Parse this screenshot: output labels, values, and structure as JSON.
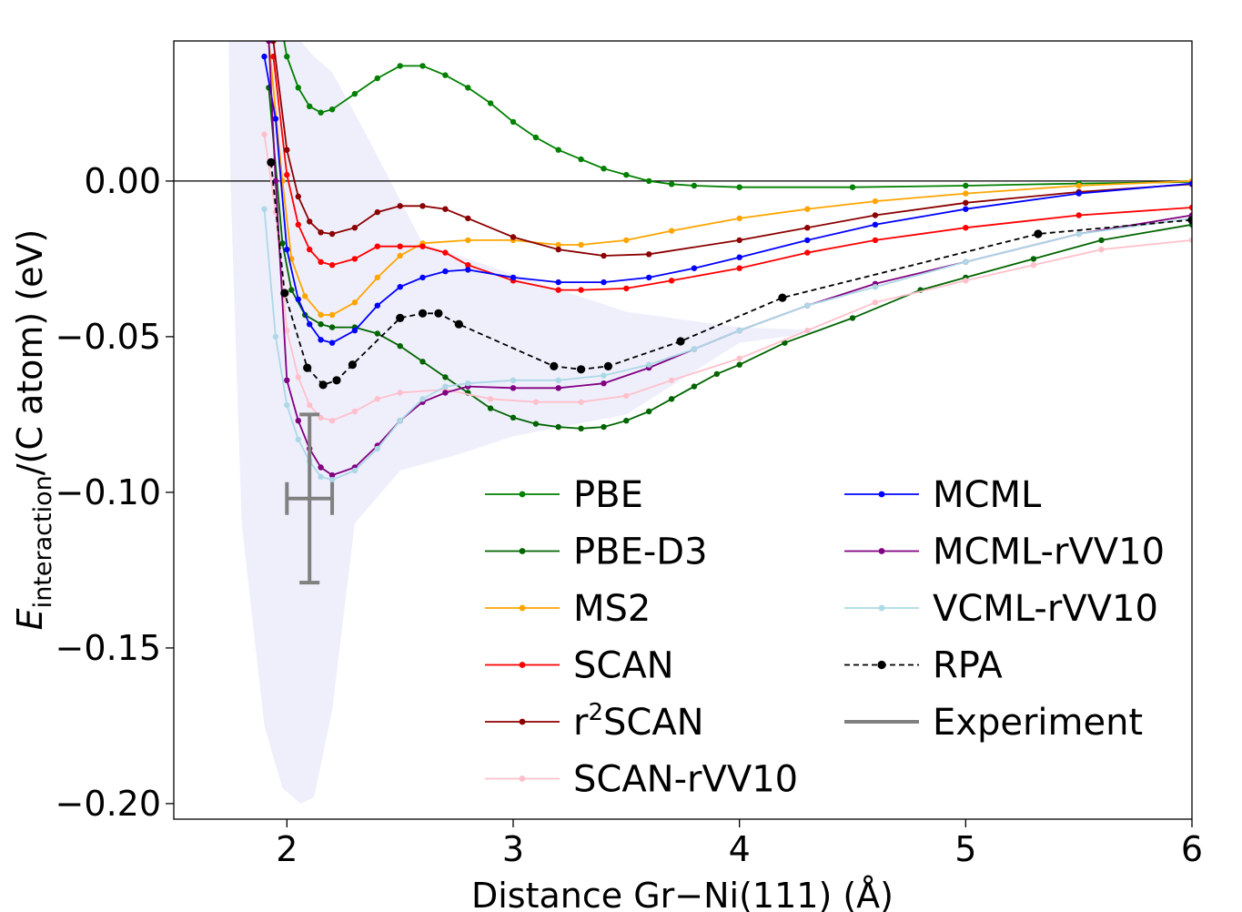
{
  "chart_data": {
    "type": "line",
    "xlabel": "Distance Gr−Ni(111) (Å)",
    "ylabel_main": "E",
    "ylabel_sub": "interaction",
    "ylabel_rest": "/(C atom) (eV)",
    "xlim": [
      1.5,
      6.0
    ],
    "ylim": [
      -0.205,
      0.045
    ],
    "xticks": [
      2,
      3,
      4,
      5,
      6
    ],
    "xtick_labels": [
      "2",
      "3",
      "4",
      "5",
      "6"
    ],
    "yticks": [
      0.0,
      -0.05,
      -0.1,
      -0.15,
      -0.2
    ],
    "ytick_labels": [
      "0.00",
      "−0.05",
      "−0.10",
      "−0.15",
      "−0.20"
    ],
    "zero_line": true,
    "grid": false,
    "legend_position": "lower-right",
    "legend_entries": [
      {
        "label": "PBE",
        "color": "#008000",
        "style": "solid-marker"
      },
      {
        "label": "PBE-D3",
        "color": "#006400",
        "style": "solid-marker"
      },
      {
        "label": "MS2",
        "color": "#FFA500",
        "style": "solid-marker"
      },
      {
        "label": "SCAN",
        "color": "#FF0000",
        "style": "solid-marker"
      },
      {
        "label_base": "r",
        "label_sup": "2",
        "label_rest": "SCAN",
        "color": "#8B0000",
        "style": "solid-marker"
      },
      {
        "label": "SCAN-rVV10",
        "color": "#FFC0CB",
        "style": "solid-marker"
      },
      {
        "label": "MCML",
        "color": "#0000FF",
        "style": "solid-marker"
      },
      {
        "label": "MCML-rVV10",
        "color": "#800080",
        "style": "solid-marker"
      },
      {
        "label": "VCML-rVV10",
        "color": "#ADD8E6",
        "style": "solid-marker"
      },
      {
        "label": "RPA",
        "color": "#000000",
        "style": "dashed-marker"
      },
      {
        "label": "Experiment",
        "color": "#808080",
        "style": "thick-line"
      }
    ],
    "uncertainty_band": {
      "name": "ensemble-band",
      "color": "#E6E6FA",
      "upper": [
        [
          1.78,
          0.06
        ],
        [
          1.88,
          0.06
        ],
        [
          2.0,
          0.05
        ],
        [
          2.12,
          0.04
        ],
        [
          2.2,
          0.035
        ],
        [
          2.35,
          0.015
        ],
        [
          2.6,
          -0.02
        ],
        [
          3.0,
          -0.03
        ],
        [
          3.5,
          -0.042
        ],
        [
          4.0,
          -0.047
        ],
        [
          4.4,
          -0.048
        ]
      ],
      "lower": [
        [
          4.4,
          -0.048
        ],
        [
          4.0,
          -0.052
        ],
        [
          3.5,
          -0.075
        ],
        [
          3.0,
          -0.082
        ],
        [
          2.75,
          -0.088
        ],
        [
          2.5,
          -0.093
        ],
        [
          2.3,
          -0.11
        ],
        [
          2.2,
          -0.17
        ],
        [
          2.12,
          -0.198
        ],
        [
          2.06,
          -0.2
        ],
        [
          1.98,
          -0.195
        ],
        [
          1.9,
          -0.175
        ],
        [
          1.8,
          -0.11
        ],
        [
          1.75,
          0.0
        ],
        [
          1.74,
          0.06
        ]
      ]
    },
    "series": [
      {
        "name": "PBE",
        "color": "#008000",
        "dashed": false,
        "marker_r": 3.2,
        "points": [
          [
            1.98,
            0.048
          ],
          [
            2.0,
            0.04
          ],
          [
            2.05,
            0.03
          ],
          [
            2.1,
            0.024
          ],
          [
            2.15,
            0.022
          ],
          [
            2.2,
            0.023
          ],
          [
            2.3,
            0.028
          ],
          [
            2.4,
            0.033
          ],
          [
            2.5,
            0.037
          ],
          [
            2.6,
            0.037
          ],
          [
            2.7,
            0.034
          ],
          [
            2.8,
            0.03
          ],
          [
            2.9,
            0.025
          ],
          [
            3.0,
            0.019
          ],
          [
            3.1,
            0.014
          ],
          [
            3.2,
            0.01
          ],
          [
            3.3,
            0.007
          ],
          [
            3.4,
            0.004
          ],
          [
            3.5,
            0.002
          ],
          [
            3.6,
            0.0
          ],
          [
            3.7,
            -0.001
          ],
          [
            3.8,
            -0.0015
          ],
          [
            4.0,
            -0.002
          ],
          [
            4.5,
            -0.002
          ],
          [
            5.0,
            -0.0015
          ],
          [
            5.5,
            -0.0008
          ],
          [
            6.0,
            -0.0003
          ]
        ]
      },
      {
        "name": "PBE-D3",
        "color": "#006400",
        "dashed": false,
        "marker_r": 3.2,
        "points": [
          [
            1.92,
            0.03
          ],
          [
            1.98,
            -0.02
          ],
          [
            2.02,
            -0.035
          ],
          [
            2.08,
            -0.043
          ],
          [
            2.15,
            -0.046
          ],
          [
            2.2,
            -0.047
          ],
          [
            2.3,
            -0.047
          ],
          [
            2.4,
            -0.049
          ],
          [
            2.5,
            -0.053
          ],
          [
            2.6,
            -0.058
          ],
          [
            2.7,
            -0.063
          ],
          [
            2.8,
            -0.068
          ],
          [
            2.9,
            -0.073
          ],
          [
            3.0,
            -0.076
          ],
          [
            3.1,
            -0.078
          ],
          [
            3.2,
            -0.079
          ],
          [
            3.3,
            -0.0795
          ],
          [
            3.4,
            -0.079
          ],
          [
            3.5,
            -0.077
          ],
          [
            3.6,
            -0.074
          ],
          [
            3.7,
            -0.07
          ],
          [
            3.8,
            -0.066
          ],
          [
            3.9,
            -0.062
          ],
          [
            4.0,
            -0.059
          ],
          [
            4.2,
            -0.052
          ],
          [
            4.5,
            -0.044
          ],
          [
            4.8,
            -0.035
          ],
          [
            5.0,
            -0.031
          ],
          [
            5.3,
            -0.025
          ],
          [
            5.6,
            -0.019
          ],
          [
            6.0,
            -0.014
          ]
        ]
      },
      {
        "name": "MS2",
        "color": "#FFA500",
        "dashed": false,
        "marker_r": 3.2,
        "points": [
          [
            1.92,
            0.045
          ],
          [
            1.98,
            0.0
          ],
          [
            2.02,
            -0.025
          ],
          [
            2.08,
            -0.037
          ],
          [
            2.15,
            -0.043
          ],
          [
            2.2,
            -0.043
          ],
          [
            2.3,
            -0.039
          ],
          [
            2.4,
            -0.031
          ],
          [
            2.5,
            -0.024
          ],
          [
            2.6,
            -0.02
          ],
          [
            2.8,
            -0.019
          ],
          [
            3.0,
            -0.019
          ],
          [
            3.2,
            -0.0205
          ],
          [
            3.3,
            -0.0205
          ],
          [
            3.5,
            -0.019
          ],
          [
            3.7,
            -0.016
          ],
          [
            4.0,
            -0.012
          ],
          [
            4.3,
            -0.009
          ],
          [
            4.6,
            -0.0065
          ],
          [
            5.0,
            -0.004
          ],
          [
            5.5,
            -0.0015
          ],
          [
            6.0,
            0.0
          ]
        ]
      },
      {
        "name": "SCAN",
        "color": "#FF0000",
        "dashed": false,
        "marker_r": 3.2,
        "points": [
          [
            1.94,
            0.04
          ],
          [
            2.0,
            0.002
          ],
          [
            2.05,
            -0.014
          ],
          [
            2.1,
            -0.022
          ],
          [
            2.15,
            -0.026
          ],
          [
            2.2,
            -0.027
          ],
          [
            2.3,
            -0.025
          ],
          [
            2.4,
            -0.021
          ],
          [
            2.5,
            -0.021
          ],
          [
            2.6,
            -0.021
          ],
          [
            2.7,
            -0.023
          ],
          [
            2.8,
            -0.027
          ],
          [
            3.0,
            -0.032
          ],
          [
            3.2,
            -0.035
          ],
          [
            3.3,
            -0.035
          ],
          [
            3.5,
            -0.0345
          ],
          [
            3.7,
            -0.032
          ],
          [
            4.0,
            -0.028
          ],
          [
            4.3,
            -0.023
          ],
          [
            4.6,
            -0.019
          ],
          [
            5.0,
            -0.015
          ],
          [
            5.5,
            -0.011
          ],
          [
            6.0,
            -0.0085
          ]
        ]
      },
      {
        "name": "r2SCAN",
        "color": "#8B0000",
        "dashed": false,
        "marker_r": 3.2,
        "points": [
          [
            1.94,
            0.045
          ],
          [
            2.0,
            0.01
          ],
          [
            2.05,
            -0.005
          ],
          [
            2.1,
            -0.013
          ],
          [
            2.15,
            -0.0165
          ],
          [
            2.2,
            -0.017
          ],
          [
            2.3,
            -0.015
          ],
          [
            2.4,
            -0.01
          ],
          [
            2.5,
            -0.008
          ],
          [
            2.6,
            -0.008
          ],
          [
            2.7,
            -0.009
          ],
          [
            2.8,
            -0.012
          ],
          [
            3.0,
            -0.018
          ],
          [
            3.2,
            -0.022
          ],
          [
            3.4,
            -0.024
          ],
          [
            3.6,
            -0.0235
          ],
          [
            4.0,
            -0.019
          ],
          [
            4.3,
            -0.015
          ],
          [
            4.6,
            -0.011
          ],
          [
            5.0,
            -0.007
          ],
          [
            5.5,
            -0.0035
          ],
          [
            6.0,
            -0.001
          ]
        ]
      },
      {
        "name": "SCAN-rVV10",
        "color": "#FFC0CB",
        "dashed": false,
        "marker_r": 3.2,
        "points": [
          [
            1.9,
            0.015
          ],
          [
            1.95,
            -0.01
          ],
          [
            2.0,
            -0.048
          ],
          [
            2.05,
            -0.063
          ],
          [
            2.1,
            -0.072
          ],
          [
            2.15,
            -0.076
          ],
          [
            2.2,
            -0.077
          ],
          [
            2.3,
            -0.074
          ],
          [
            2.4,
            -0.07
          ],
          [
            2.5,
            -0.068
          ],
          [
            2.7,
            -0.067
          ],
          [
            2.9,
            -0.07
          ],
          [
            3.1,
            -0.071
          ],
          [
            3.3,
            -0.071
          ],
          [
            3.5,
            -0.069
          ],
          [
            3.7,
            -0.064
          ],
          [
            4.0,
            -0.057
          ],
          [
            4.3,
            -0.048
          ],
          [
            4.6,
            -0.039
          ],
          [
            5.0,
            -0.032
          ],
          [
            5.3,
            -0.027
          ],
          [
            5.6,
            -0.022
          ],
          [
            6.0,
            -0.019
          ]
        ]
      },
      {
        "name": "MCML",
        "color": "#0000FF",
        "dashed": false,
        "marker_r": 3.2,
        "points": [
          [
            1.9,
            0.04
          ],
          [
            1.95,
            0.02
          ],
          [
            2.0,
            -0.022
          ],
          [
            2.05,
            -0.038
          ],
          [
            2.1,
            -0.046
          ],
          [
            2.15,
            -0.051
          ],
          [
            2.2,
            -0.052
          ],
          [
            2.3,
            -0.048
          ],
          [
            2.4,
            -0.04
          ],
          [
            2.5,
            -0.034
          ],
          [
            2.6,
            -0.031
          ],
          [
            2.7,
            -0.029
          ],
          [
            2.8,
            -0.0285
          ],
          [
            3.0,
            -0.031
          ],
          [
            3.2,
            -0.0325
          ],
          [
            3.4,
            -0.0325
          ],
          [
            3.6,
            -0.031
          ],
          [
            3.8,
            -0.028
          ],
          [
            4.0,
            -0.0245
          ],
          [
            4.3,
            -0.019
          ],
          [
            4.6,
            -0.014
          ],
          [
            5.0,
            -0.009
          ],
          [
            5.5,
            -0.004
          ],
          [
            6.0,
            -0.0008
          ]
        ]
      },
      {
        "name": "MCML-rVV10",
        "color": "#800080",
        "dashed": false,
        "marker_r": 3.2,
        "points": [
          [
            1.92,
            0.045
          ],
          [
            1.95,
            0.0
          ],
          [
            2.0,
            -0.064
          ],
          [
            2.05,
            -0.077
          ],
          [
            2.1,
            -0.086
          ],
          [
            2.15,
            -0.092
          ],
          [
            2.2,
            -0.0945
          ],
          [
            2.3,
            -0.092
          ],
          [
            2.4,
            -0.085
          ],
          [
            2.5,
            -0.077
          ],
          [
            2.6,
            -0.071
          ],
          [
            2.7,
            -0.068
          ],
          [
            2.8,
            -0.066
          ],
          [
            3.0,
            -0.0665
          ],
          [
            3.2,
            -0.0665
          ],
          [
            3.4,
            -0.065
          ],
          [
            3.6,
            -0.06
          ],
          [
            3.8,
            -0.054
          ],
          [
            4.0,
            -0.048
          ],
          [
            4.3,
            -0.04
          ],
          [
            4.6,
            -0.033
          ],
          [
            5.0,
            -0.026
          ],
          [
            5.5,
            -0.017
          ],
          [
            6.0,
            -0.011
          ]
        ]
      },
      {
        "name": "VCML-rVV10",
        "color": "#ADD8E6",
        "dashed": false,
        "marker_r": 3.2,
        "points": [
          [
            1.9,
            -0.009
          ],
          [
            1.95,
            -0.05
          ],
          [
            2.0,
            -0.072
          ],
          [
            2.05,
            -0.083
          ],
          [
            2.1,
            -0.09
          ],
          [
            2.15,
            -0.095
          ],
          [
            2.2,
            -0.096
          ],
          [
            2.3,
            -0.093
          ],
          [
            2.4,
            -0.086
          ],
          [
            2.5,
            -0.077
          ],
          [
            2.6,
            -0.07
          ],
          [
            2.7,
            -0.066
          ],
          [
            2.8,
            -0.065
          ],
          [
            3.0,
            -0.064
          ],
          [
            3.2,
            -0.064
          ],
          [
            3.4,
            -0.0625
          ],
          [
            3.6,
            -0.059
          ],
          [
            3.8,
            -0.054
          ],
          [
            4.0,
            -0.048
          ],
          [
            4.3,
            -0.04
          ],
          [
            4.6,
            -0.034
          ],
          [
            5.0,
            -0.026
          ],
          [
            5.5,
            -0.017
          ],
          [
            6.0,
            -0.012
          ]
        ]
      },
      {
        "name": "RPA",
        "color": "#000000",
        "dashed": true,
        "marker_r": 4.6,
        "points": [
          [
            1.93,
            0.006
          ],
          [
            1.99,
            -0.036
          ],
          [
            2.09,
            -0.06
          ],
          [
            2.16,
            -0.0655
          ],
          [
            2.22,
            -0.064
          ],
          [
            2.29,
            -0.059
          ],
          [
            2.5,
            -0.044
          ],
          [
            2.6,
            -0.0425
          ],
          [
            2.67,
            -0.0425
          ],
          [
            2.76,
            -0.046
          ],
          [
            3.18,
            -0.0595
          ],
          [
            3.3,
            -0.0605
          ],
          [
            3.42,
            -0.0595
          ],
          [
            3.74,
            -0.0515
          ],
          [
            4.19,
            -0.0375
          ],
          [
            5.32,
            -0.017
          ],
          [
            6.0,
            -0.0125
          ]
        ]
      }
    ],
    "experiment": {
      "name": "Experiment",
      "color": "#808080",
      "x": 2.1,
      "y": -0.102,
      "xerr_low": 2.0,
      "xerr_high": 2.2,
      "yerr_low": -0.129,
      "yerr_high": -0.075
    }
  }
}
